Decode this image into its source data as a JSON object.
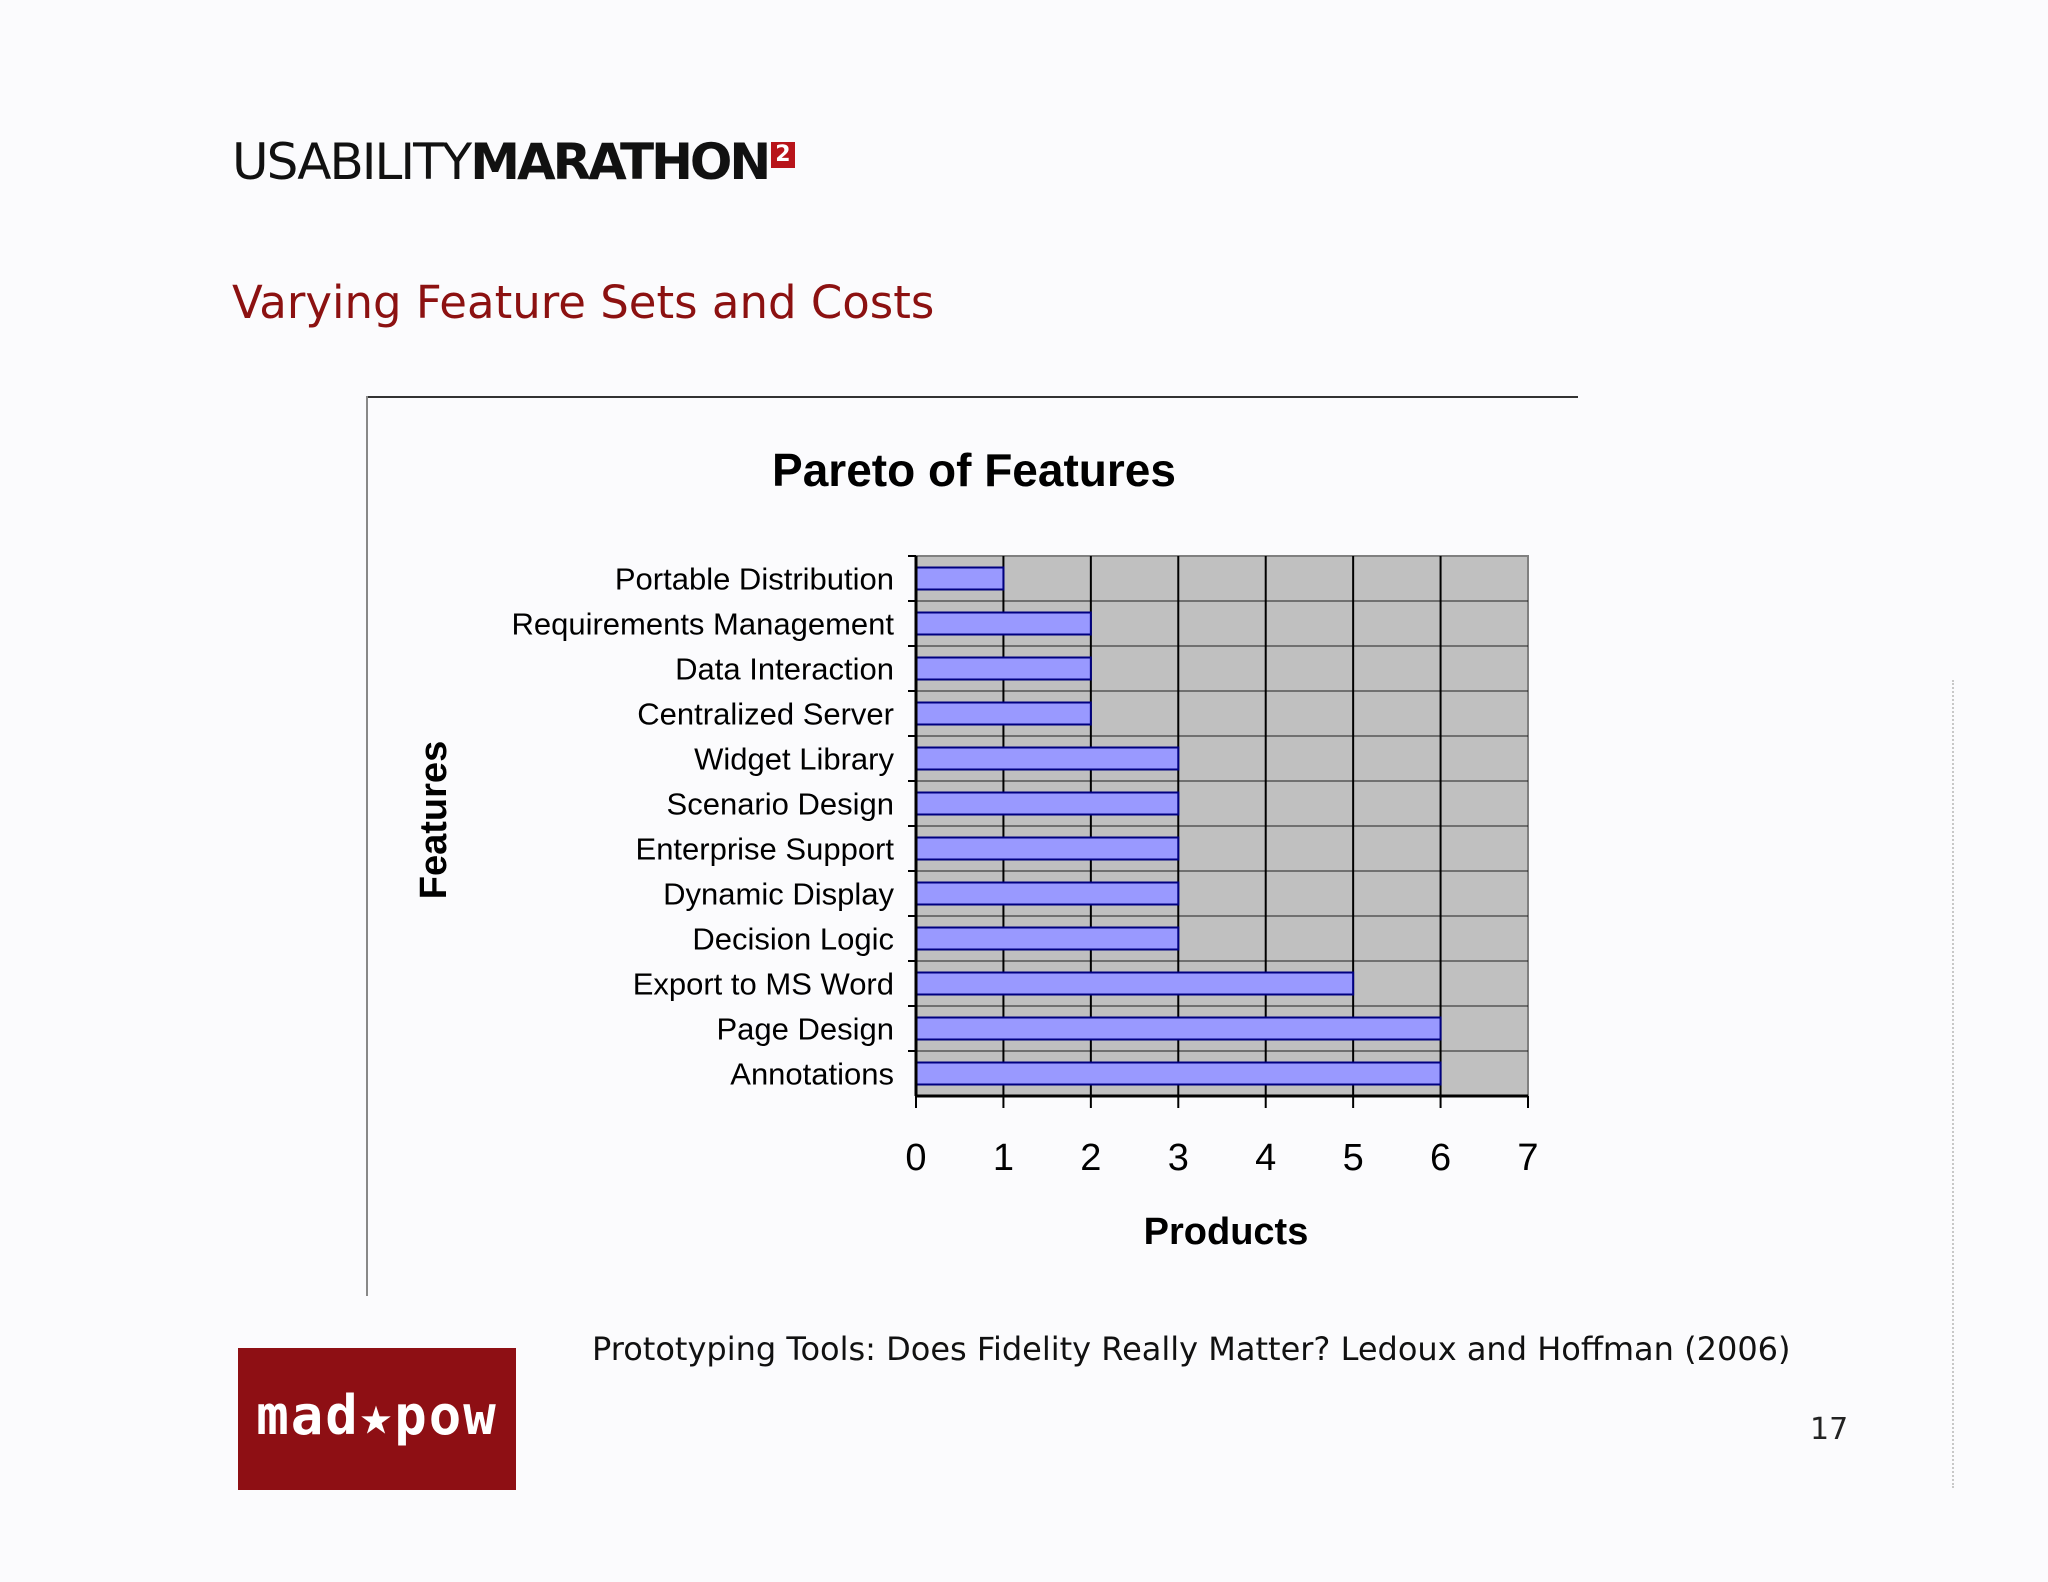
{
  "header": {
    "logo_light": "USABILITY",
    "logo_bold": "MARATHON",
    "logo_badge": "2",
    "slide_title": "Varying Feature Sets and Costs"
  },
  "chart_data": {
    "type": "bar",
    "orientation": "horizontal",
    "title": "Pareto of Features",
    "xlabel": "Products",
    "ylabel": "Features",
    "xlim": [
      0,
      7
    ],
    "x_ticks": [
      "0",
      "1",
      "2",
      "3",
      "4",
      "5",
      "6",
      "7"
    ],
    "grid": true,
    "categories": [
      "Portable Distribution",
      "Requirements Management",
      "Data Interaction",
      "Centralized Server",
      "Widget Library",
      "Scenario Design",
      "Enterprise Support",
      "Dynamic Display",
      "Decision Logic",
      "Export to MS Word",
      "Page Design",
      "Annotations"
    ],
    "values": [
      1,
      2,
      2,
      2,
      3,
      3,
      3,
      3,
      3,
      5,
      6,
      6
    ],
    "colors": {
      "bar_fill": "#9999ff",
      "bar_stroke": "#000080",
      "plot_background": "#c0c0c0",
      "gridline": "#000000"
    }
  },
  "footer": {
    "citation": "Prototyping Tools: Does Fidelity Really Matter? Ledoux and Hoffman (2006)",
    "brand_logo": "mad★pow",
    "page_number": "17"
  },
  "colors": {
    "title_red": "#8c1111",
    "brand_red": "#8e0f14",
    "badge_red": "#b8141a"
  }
}
